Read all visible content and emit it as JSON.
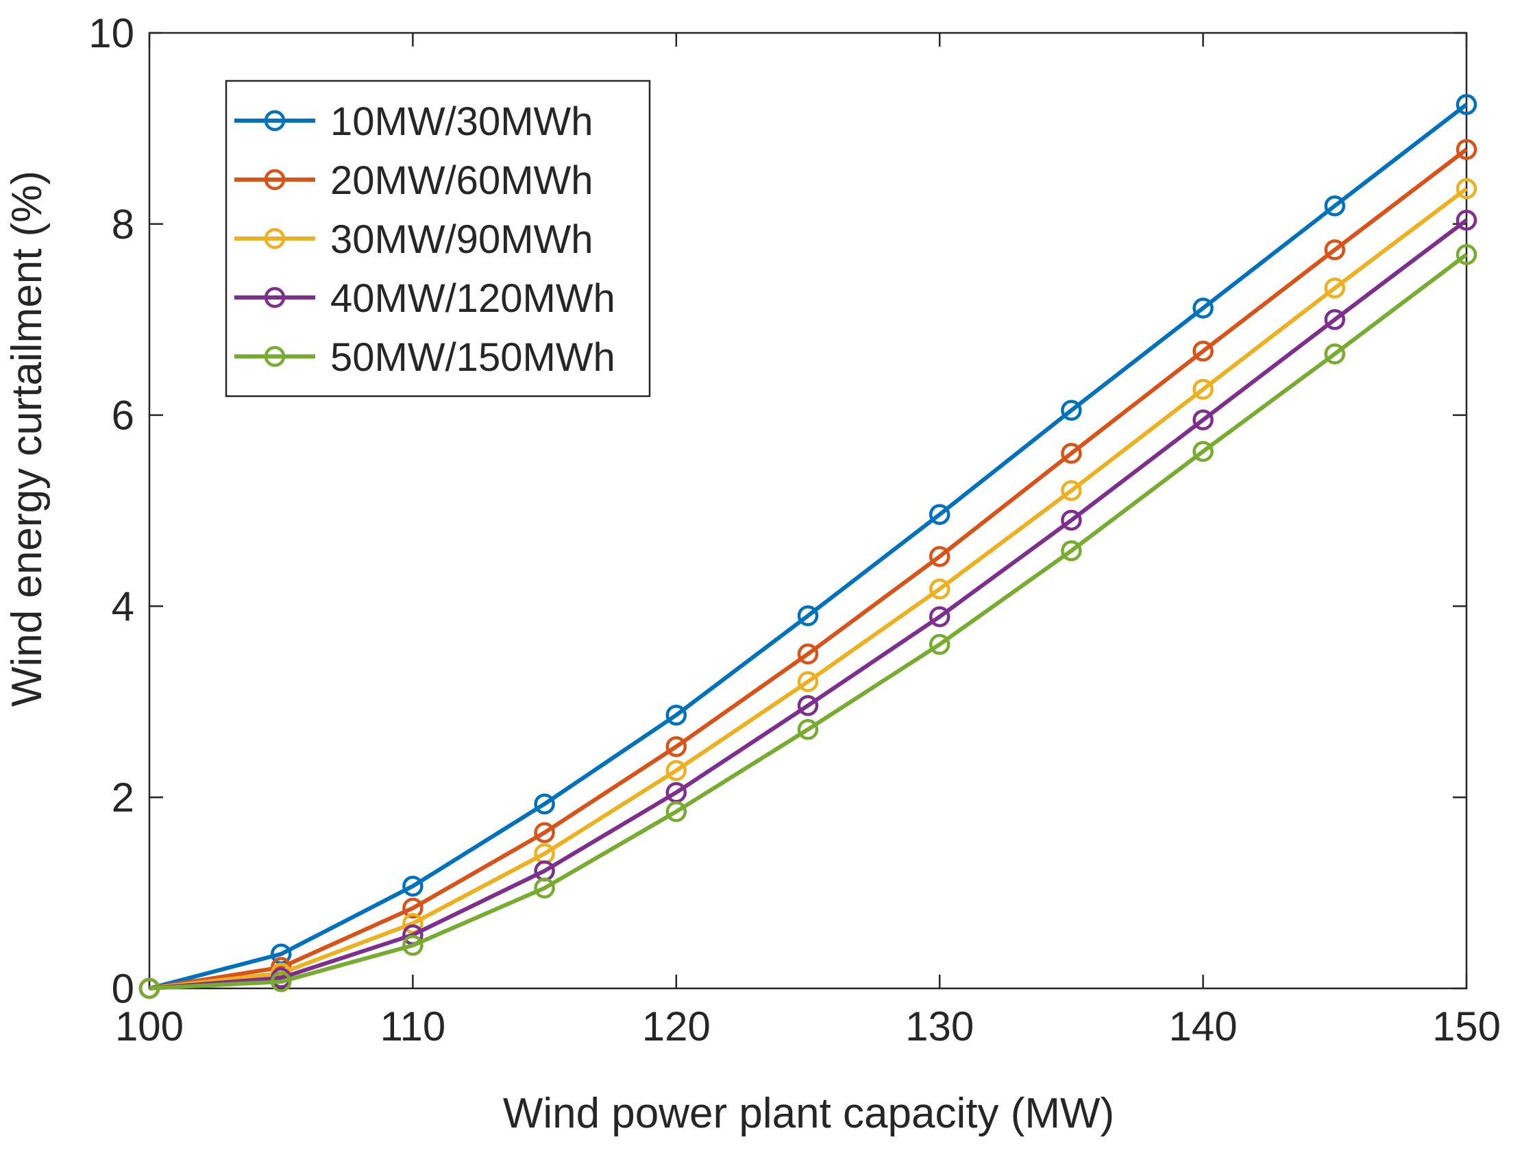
{
  "chart_data": {
    "type": "line",
    "title": "",
    "xlabel": "Wind power plant capacity (MW)",
    "ylabel": "Wind energy curtailment (%)",
    "xlim": [
      100,
      150
    ],
    "ylim": [
      0,
      10
    ],
    "x_ticks": [
      100,
      110,
      120,
      130,
      140,
      150
    ],
    "y_ticks": [
      0,
      2,
      4,
      6,
      8,
      10
    ],
    "grid": false,
    "legend_position": "top-left",
    "marker": "circle",
    "x": [
      100,
      105,
      110,
      115,
      120,
      125,
      130,
      135,
      140,
      145,
      150
    ],
    "series": [
      {
        "name": "10MW/30MWh",
        "color": "#0072BD",
        "values": [
          0,
          0.36,
          1.07,
          1.93,
          2.86,
          3.9,
          4.96,
          6.05,
          7.12,
          8.19,
          9.25
        ]
      },
      {
        "name": "20MW/60MWh",
        "color": "#D95319",
        "values": [
          0,
          0.22,
          0.84,
          1.63,
          2.53,
          3.5,
          4.52,
          5.6,
          6.67,
          7.73,
          8.78
        ]
      },
      {
        "name": "30MW/90MWh",
        "color": "#EDB120",
        "values": [
          0,
          0.16,
          0.68,
          1.41,
          2.28,
          3.21,
          4.18,
          5.21,
          6.27,
          7.33,
          8.37
        ]
      },
      {
        "name": "40MW/120MWh",
        "color": "#7E2F8E",
        "values": [
          0,
          0.11,
          0.56,
          1.23,
          2.05,
          2.96,
          3.89,
          4.9,
          5.95,
          7.0,
          8.04
        ]
      },
      {
        "name": "50MW/150MWh",
        "color": "#77AC30",
        "values": [
          0,
          0.07,
          0.45,
          1.05,
          1.85,
          2.71,
          3.6,
          4.58,
          5.62,
          6.64,
          7.68
        ]
      }
    ]
  }
}
